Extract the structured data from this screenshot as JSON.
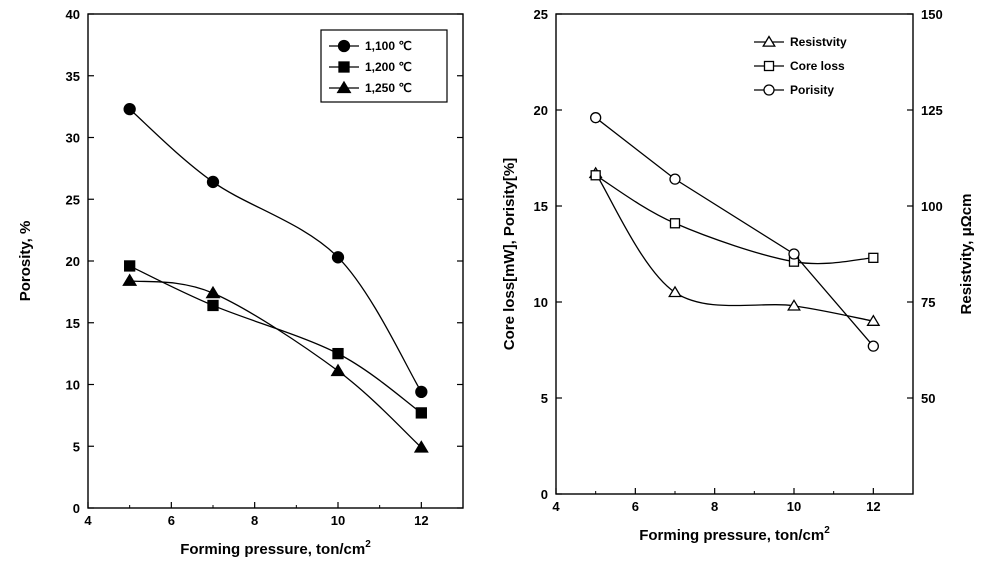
{
  "chart_data": [
    {
      "type": "line",
      "xlabel": "Forming pressure,  ton/cm",
      "xlabel_sup": "2",
      "ylabel": "Porosity, %",
      "xlim": [
        4,
        13
      ],
      "ylim": [
        0,
        40
      ],
      "xticks": [
        "4",
        "6",
        "8",
        "10",
        "12"
      ],
      "yticks": [
        "0",
        "5",
        "10",
        "15",
        "20",
        "25",
        "30",
        "35",
        "40"
      ],
      "x": [
        5,
        7,
        10,
        12
      ],
      "legend_position": "top-right",
      "series": [
        {
          "name": "1,100 ℃",
          "marker": "circle",
          "filled": true,
          "values": [
            32.3,
            26.4,
            20.3,
            9.4
          ]
        },
        {
          "name": "1,200 ℃",
          "marker": "square",
          "filled": true,
          "values": [
            19.6,
            16.4,
            12.5,
            7.7
          ]
        },
        {
          "name": "1,250 ℃",
          "marker": "triangle",
          "filled": true,
          "values": [
            18.4,
            17.4,
            11.1,
            4.9
          ]
        }
      ]
    },
    {
      "type": "line",
      "xlabel": "Forming pressure, ton/cm",
      "xlabel_sup": "2",
      "ylabel": "Core loss[mW],  Porisity[%]",
      "y2label": "Resistvity, μΩcm",
      "xlim": [
        4,
        13
      ],
      "ylim": [
        0,
        25
      ],
      "y2lim": [
        25,
        150
      ],
      "xticks": [
        "4",
        "6",
        "8",
        "10",
        "12"
      ],
      "yticks": [
        "0",
        "5",
        "10",
        "15",
        "20",
        "25"
      ],
      "y2ticks": [
        "50",
        "75",
        "100",
        "125",
        "150"
      ],
      "x": [
        5,
        7,
        10,
        12
      ],
      "legend_position": "top-right",
      "series": [
        {
          "name": "Resistvity",
          "marker": "triangle",
          "filled": false,
          "axis": "right",
          "values": [
            108.5,
            77.5,
            74.0,
            70.0
          ]
        },
        {
          "name": "Core loss",
          "marker": "square",
          "filled": false,
          "axis": "left",
          "values": [
            16.6,
            14.1,
            12.1,
            12.3
          ]
        },
        {
          "name": "Porisity",
          "marker": "circle",
          "filled": false,
          "axis": "left",
          "values": [
            19.6,
            16.4,
            12.5,
            7.7
          ]
        }
      ]
    }
  ]
}
